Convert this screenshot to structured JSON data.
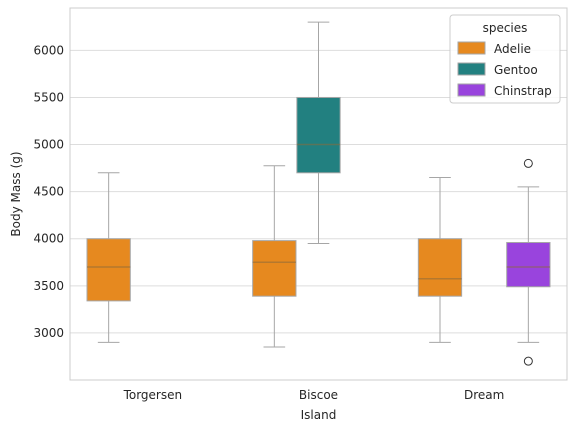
{
  "chart_data": {
    "type": "box",
    "xlabel": "Island",
    "ylabel": "Body Mass (g)",
    "categories": [
      "Torgersen",
      "Biscoe",
      "Dream"
    ],
    "hue_order": [
      "Adelie",
      "Gentoo",
      "Chinstrap"
    ],
    "ylim": [
      2500,
      6450
    ],
    "yticks": [
      3000,
      3500,
      4000,
      4500,
      5000,
      5500,
      6000
    ],
    "grid": true,
    "legend": {
      "title": "species",
      "position": "top-right",
      "entries": [
        {
          "label": "Adelie",
          "color": "#E6891F"
        },
        {
          "label": "Gentoo",
          "color": "#228080"
        },
        {
          "label": "Chinstrap",
          "color": "#9944DD"
        }
      ]
    },
    "boxes": [
      {
        "category": "Torgersen",
        "species": "Adelie",
        "whisker_low": 2900,
        "q1": 3340,
        "median": 3700,
        "q3": 4000,
        "whisker_high": 4700,
        "outliers": []
      },
      {
        "category": "Biscoe",
        "species": "Adelie",
        "whisker_low": 2850,
        "q1": 3390,
        "median": 3750,
        "q3": 3980,
        "whisker_high": 4775,
        "outliers": []
      },
      {
        "category": "Biscoe",
        "species": "Gentoo",
        "whisker_low": 3950,
        "q1": 4700,
        "median": 5000,
        "q3": 5500,
        "whisker_high": 6300,
        "outliers": []
      },
      {
        "category": "Dream",
        "species": "Adelie",
        "whisker_low": 2900,
        "q1": 3390,
        "median": 3575,
        "q3": 4000,
        "whisker_high": 4650,
        "outliers": []
      },
      {
        "category": "Dream",
        "species": "Chinstrap",
        "whisker_low": 2900,
        "q1": 3490,
        "median": 3700,
        "q3": 3960,
        "whisker_high": 4550,
        "outliers": [
          4800,
          2700
        ]
      }
    ]
  }
}
